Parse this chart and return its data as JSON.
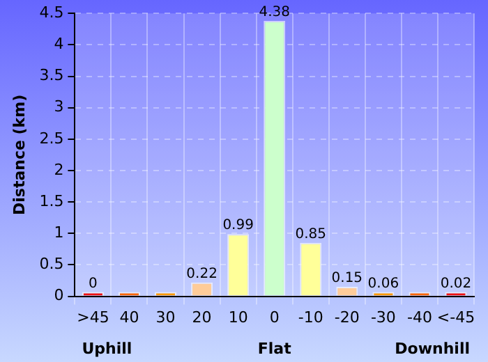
{
  "chart_data": {
    "type": "bar",
    "ylabel": "Distance (km)",
    "categories": [
      ">45",
      "40",
      "30",
      "20",
      "10",
      "0",
      "-10",
      "-20",
      "-30",
      "-40",
      "<-45"
    ],
    "values": [
      0,
      0,
      0,
      0.22,
      0.99,
      4.38,
      0.85,
      0.15,
      0.06,
      0,
      0.02
    ],
    "value_labels": [
      "0",
      null,
      null,
      "0.22",
      "0.99",
      "4.38",
      "0.85",
      "0.15",
      "0.06",
      null,
      "0.02"
    ],
    "colors": [
      "#ee1111",
      "#ff6600",
      "#ff9900",
      "#ffcc99",
      "#ffff99",
      "#ccffcc",
      "#ffff99",
      "#ffcc99",
      "#ff9900",
      "#ff6600",
      "#ee1111"
    ],
    "ylim": [
      0,
      4.5
    ],
    "yticks": [
      0,
      0.5,
      1,
      1.5,
      2,
      2.5,
      3,
      3.5,
      4,
      4.5
    ],
    "grid": true,
    "line_style": "dashed",
    "legend": false,
    "annotations": [
      "Uphill",
      "Flat",
      "Downhill"
    ]
  }
}
